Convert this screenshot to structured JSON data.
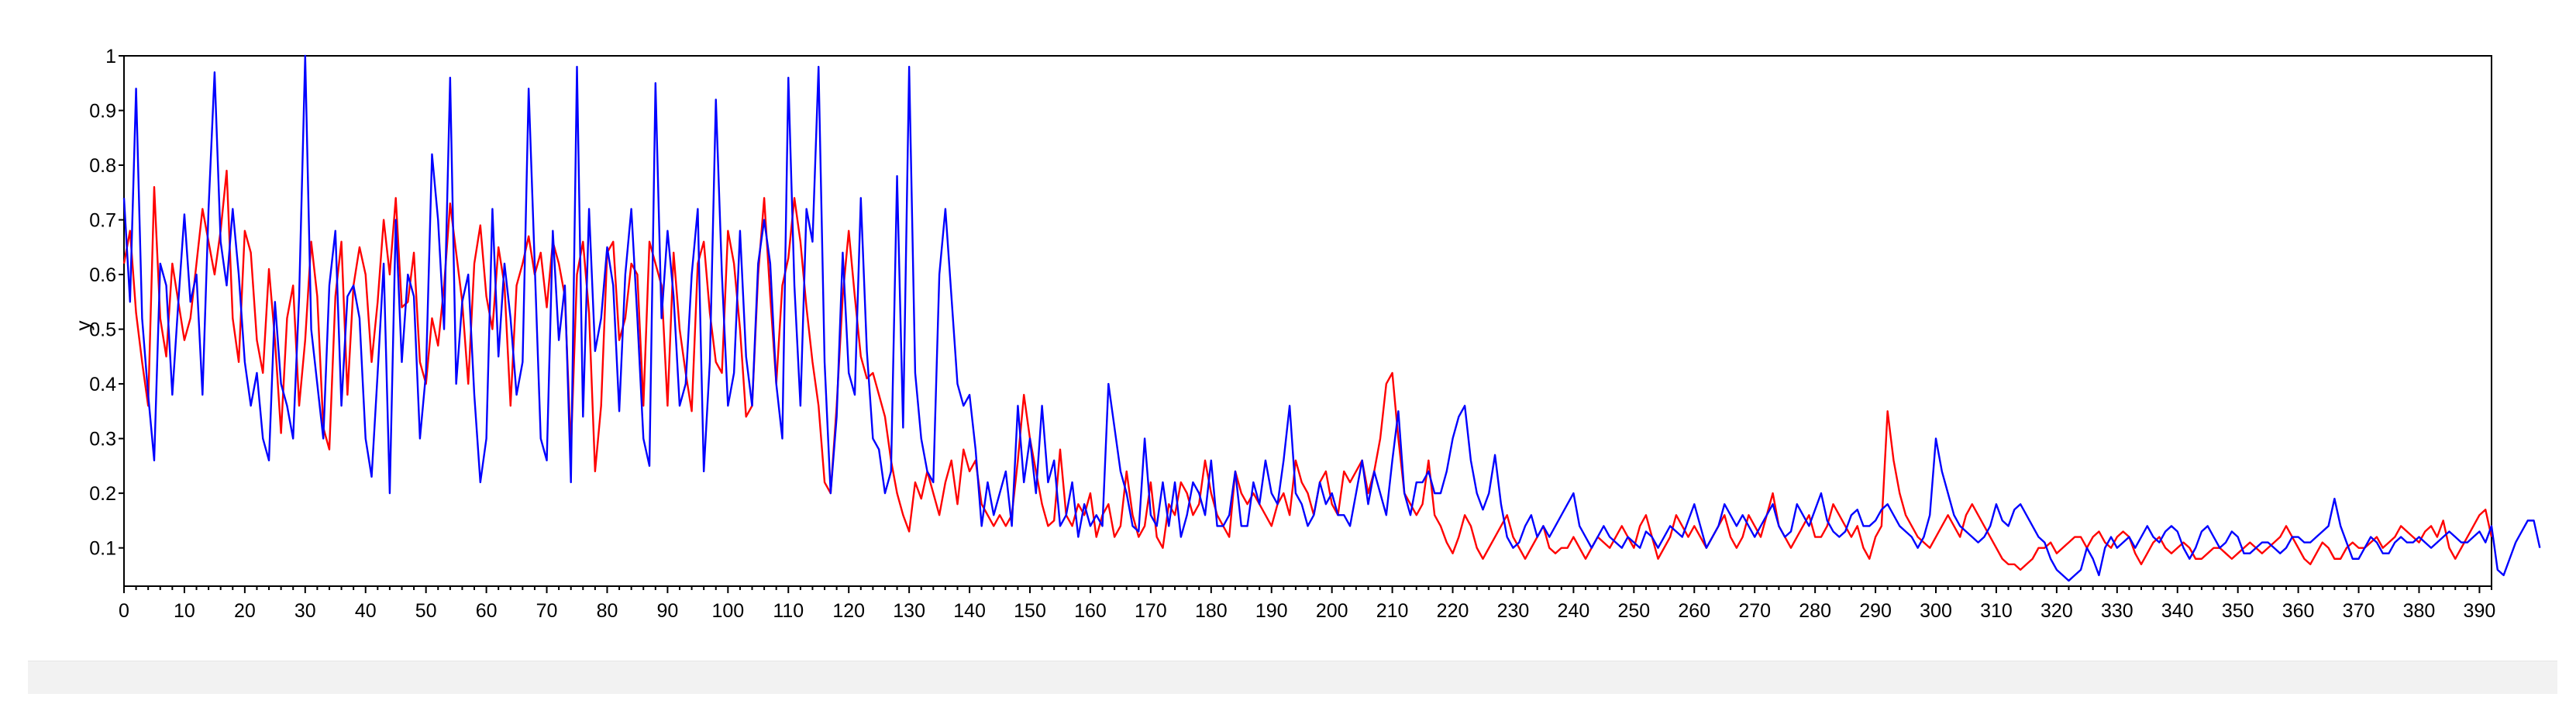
{
  "chart_data": {
    "type": "line",
    "ylabel": "y",
    "xlim": [
      0,
      392
    ],
    "ylim": [
      0.03,
      1.0
    ],
    "x_ticks": [
      "0",
      "10",
      "20",
      "30",
      "40",
      "50",
      "60",
      "70",
      "80",
      "90",
      "100",
      "110",
      "120",
      "130",
      "140",
      "150",
      "160",
      "170",
      "180",
      "190",
      "200",
      "210",
      "220",
      "230",
      "240",
      "250",
      "260",
      "270",
      "280",
      "290",
      "300",
      "310",
      "320",
      "330",
      "340",
      "350",
      "360",
      "370",
      "380",
      "390"
    ],
    "y_ticks": [
      "0.1",
      "0.2",
      "0.3",
      "0.4",
      "0.5",
      "0.6",
      "0.7",
      "0.8",
      "0.9",
      "1"
    ],
    "series": [
      {
        "color": "#ff0000",
        "values": [
          0.62,
          0.68,
          0.53,
          0.44,
          0.36,
          0.76,
          0.52,
          0.45,
          0.62,
          0.55,
          0.48,
          0.52,
          0.62,
          0.72,
          0.66,
          0.6,
          0.68,
          0.79,
          0.52,
          0.44,
          0.68,
          0.64,
          0.48,
          0.42,
          0.61,
          0.48,
          0.31,
          0.52,
          0.58,
          0.36,
          0.48,
          0.66,
          0.56,
          0.32,
          0.28,
          0.56,
          0.66,
          0.38,
          0.58,
          0.65,
          0.6,
          0.44,
          0.55,
          0.7,
          0.6,
          0.74,
          0.54,
          0.55,
          0.64,
          0.44,
          0.4,
          0.52,
          0.47,
          0.58,
          0.73,
          0.64,
          0.55,
          0.4,
          0.62,
          0.69,
          0.56,
          0.5,
          0.65,
          0.58,
          0.36,
          0.58,
          0.62,
          0.67,
          0.6,
          0.64,
          0.54,
          0.66,
          0.62,
          0.56,
          0.28,
          0.6,
          0.66,
          0.53,
          0.24,
          0.36,
          0.64,
          0.66,
          0.48,
          0.52,
          0.62,
          0.6,
          0.36,
          0.66,
          0.62,
          0.58,
          0.36,
          0.64,
          0.5,
          0.42,
          0.35,
          0.62,
          0.66,
          0.53,
          0.44,
          0.42,
          0.68,
          0.62,
          0.5,
          0.34,
          0.36,
          0.6,
          0.74,
          0.56,
          0.4,
          0.58,
          0.63,
          0.74,
          0.66,
          0.54,
          0.44,
          0.36,
          0.22,
          0.2,
          0.36,
          0.56,
          0.68,
          0.56,
          0.45,
          0.41,
          0.42,
          0.38,
          0.34,
          0.26,
          0.2,
          0.16,
          0.13,
          0.22,
          0.19,
          0.24,
          0.2,
          0.16,
          0.22,
          0.26,
          0.18,
          0.28,
          0.24,
          0.26,
          0.18,
          0.16,
          0.14,
          0.16,
          0.14,
          0.16,
          0.26,
          0.38,
          0.3,
          0.24,
          0.18,
          0.14,
          0.15,
          0.28,
          0.16,
          0.14,
          0.18,
          0.16,
          0.2,
          0.12,
          0.16,
          0.18,
          0.12,
          0.14,
          0.24,
          0.16,
          0.12,
          0.14,
          0.22,
          0.12,
          0.1,
          0.18,
          0.16,
          0.22,
          0.2,
          0.16,
          0.18,
          0.26,
          0.2,
          0.16,
          0.14,
          0.12,
          0.24,
          0.2,
          0.18,
          0.2,
          0.18,
          0.16,
          0.14,
          0.18,
          0.2,
          0.16,
          0.26,
          0.22,
          0.2,
          0.16,
          0.22,
          0.24,
          0.18,
          0.16,
          0.24,
          0.22,
          0.24,
          0.26,
          0.2,
          0.24,
          0.3,
          0.4,
          0.42,
          0.3,
          0.2,
          0.18,
          0.16,
          0.18,
          0.26,
          0.16,
          0.14,
          0.11,
          0.09,
          0.12,
          0.16,
          0.14,
          0.1,
          0.08,
          0.1,
          0.12,
          0.14,
          0.16,
          0.12,
          0.1,
          0.08,
          0.1,
          0.12,
          0.14,
          0.1,
          0.09,
          0.1,
          0.1,
          0.12,
          0.1,
          0.08,
          0.1,
          0.12,
          0.11,
          0.1,
          0.12,
          0.14,
          0.12,
          0.1,
          0.14,
          0.16,
          0.12,
          0.08,
          0.1,
          0.12,
          0.16,
          0.14,
          0.12,
          0.14,
          0.12,
          0.1,
          0.12,
          0.14,
          0.16,
          0.12,
          0.1,
          0.12,
          0.16,
          0.14,
          0.12,
          0.16,
          0.2,
          0.14,
          0.12,
          0.1,
          0.12,
          0.14,
          0.16,
          0.12,
          0.12,
          0.14,
          0.18,
          0.16,
          0.14,
          0.12,
          0.14,
          0.1,
          0.08,
          0.12,
          0.14,
          0.35,
          0.26,
          0.2,
          0.16,
          0.14,
          0.12,
          0.11,
          0.1,
          0.12,
          0.14,
          0.16,
          0.14,
          0.12,
          0.16,
          0.18,
          0.16,
          0.14,
          0.12,
          0.1,
          0.08,
          0.07,
          0.07,
          0.06,
          0.07,
          0.08,
          0.1,
          0.1,
          0.11,
          0.09,
          0.1,
          0.11,
          0.12,
          0.12,
          0.1,
          0.12,
          0.13,
          0.11,
          0.1,
          0.12,
          0.13,
          0.12,
          0.09,
          0.07,
          0.09,
          0.11,
          0.12,
          0.1,
          0.09,
          0.1,
          0.11,
          0.1,
          0.08,
          0.08,
          0.09,
          0.1,
          0.1,
          0.09,
          0.08,
          0.09,
          0.1,
          0.11,
          0.1,
          0.09,
          0.1,
          0.11,
          0.12,
          0.14,
          0.12,
          0.1,
          0.08,
          0.07,
          0.09,
          0.11,
          0.1,
          0.08,
          0.08,
          0.1,
          0.11,
          0.1,
          0.1,
          0.11,
          0.12,
          0.1,
          0.11,
          0.12,
          0.14,
          0.13,
          0.12,
          0.11,
          0.13,
          0.14,
          0.12,
          0.15,
          0.1,
          0.08,
          0.1,
          0.12,
          0.14,
          0.16,
          0.17,
          0.12
        ]
      },
      {
        "color": "#0000ff",
        "values": [
          0.74,
          0.55,
          0.94,
          0.52,
          0.38,
          0.26,
          0.62,
          0.58,
          0.38,
          0.55,
          0.71,
          0.55,
          0.6,
          0.38,
          0.72,
          0.97,
          0.66,
          0.58,
          0.72,
          0.6,
          0.44,
          0.36,
          0.42,
          0.3,
          0.26,
          0.55,
          0.4,
          0.36,
          0.3,
          0.56,
          1.0,
          0.5,
          0.4,
          0.3,
          0.58,
          0.68,
          0.36,
          0.56,
          0.58,
          0.52,
          0.3,
          0.23,
          0.42,
          0.62,
          0.2,
          0.7,
          0.44,
          0.6,
          0.56,
          0.3,
          0.42,
          0.82,
          0.7,
          0.5,
          0.96,
          0.4,
          0.55,
          0.6,
          0.38,
          0.22,
          0.3,
          0.72,
          0.45,
          0.62,
          0.52,
          0.38,
          0.44,
          0.94,
          0.62,
          0.3,
          0.26,
          0.68,
          0.48,
          0.58,
          0.22,
          0.98,
          0.34,
          0.72,
          0.46,
          0.52,
          0.65,
          0.58,
          0.35,
          0.6,
          0.72,
          0.52,
          0.3,
          0.25,
          0.95,
          0.52,
          0.68,
          0.56,
          0.36,
          0.4,
          0.6,
          0.72,
          0.24,
          0.44,
          0.92,
          0.6,
          0.36,
          0.42,
          0.68,
          0.45,
          0.36,
          0.62,
          0.7,
          0.62,
          0.4,
          0.3,
          0.96,
          0.58,
          0.36,
          0.72,
          0.66,
          0.98,
          0.44,
          0.2,
          0.34,
          0.64,
          0.42,
          0.38,
          0.74,
          0.46,
          0.3,
          0.28,
          0.2,
          0.24,
          0.78,
          0.32,
          0.98,
          0.42,
          0.3,
          0.24,
          0.22,
          0.6,
          0.72,
          0.56,
          0.4,
          0.36,
          0.38,
          0.28,
          0.14,
          0.22,
          0.16,
          0.2,
          0.24,
          0.14,
          0.36,
          0.22,
          0.3,
          0.2,
          0.36,
          0.22,
          0.26,
          0.14,
          0.16,
          0.22,
          0.12,
          0.18,
          0.14,
          0.16,
          0.14,
          0.4,
          0.32,
          0.24,
          0.2,
          0.14,
          0.13,
          0.3,
          0.16,
          0.14,
          0.22,
          0.14,
          0.22,
          0.12,
          0.16,
          0.22,
          0.2,
          0.16,
          0.26,
          0.14,
          0.14,
          0.16,
          0.24,
          0.14,
          0.14,
          0.22,
          0.18,
          0.26,
          0.2,
          0.18,
          0.26,
          0.36,
          0.2,
          0.18,
          0.14,
          0.16,
          0.22,
          0.18,
          0.2,
          0.16,
          0.16,
          0.14,
          0.2,
          0.26,
          0.18,
          0.24,
          0.2,
          0.16,
          0.26,
          0.35,
          0.2,
          0.16,
          0.22,
          0.22,
          0.24,
          0.2,
          0.2,
          0.24,
          0.3,
          0.34,
          0.36,
          0.26,
          0.2,
          0.17,
          0.2,
          0.27,
          0.18,
          0.12,
          0.1,
          0.11,
          0.14,
          0.16,
          0.12,
          0.14,
          0.12,
          0.14,
          0.16,
          0.18,
          0.2,
          0.14,
          0.12,
          0.1,
          0.12,
          0.14,
          0.12,
          0.11,
          0.1,
          0.12,
          0.11,
          0.1,
          0.13,
          0.12,
          0.1,
          0.12,
          0.14,
          0.13,
          0.12,
          0.15,
          0.18,
          0.14,
          0.1,
          0.12,
          0.14,
          0.18,
          0.16,
          0.14,
          0.16,
          0.14,
          0.12,
          0.14,
          0.16,
          0.18,
          0.14,
          0.12,
          0.13,
          0.18,
          0.16,
          0.14,
          0.17,
          0.2,
          0.15,
          0.13,
          0.12,
          0.13,
          0.16,
          0.17,
          0.14,
          0.14,
          0.15,
          0.17,
          0.18,
          0.16,
          0.14,
          0.13,
          0.12,
          0.1,
          0.12,
          0.16,
          0.3,
          0.24,
          0.2,
          0.16,
          0.14,
          0.13,
          0.12,
          0.11,
          0.12,
          0.14,
          0.18,
          0.15,
          0.14,
          0.17,
          0.18,
          0.16,
          0.14,
          0.12,
          0.11,
          0.08,
          0.06,
          0.05,
          0.04,
          0.05,
          0.06,
          0.1,
          0.08,
          0.05,
          0.1,
          0.12,
          0.1,
          0.11,
          0.12,
          0.1,
          0.12,
          0.14,
          0.12,
          0.11,
          0.13,
          0.14,
          0.13,
          0.1,
          0.08,
          0.1,
          0.13,
          0.14,
          0.12,
          0.1,
          0.11,
          0.13,
          0.12,
          0.09,
          0.09,
          0.1,
          0.11,
          0.11,
          0.1,
          0.09,
          0.1,
          0.12,
          0.12,
          0.11,
          0.11,
          0.12,
          0.13,
          0.14,
          0.19,
          0.14,
          0.11,
          0.08,
          0.08,
          0.1,
          0.12,
          0.11,
          0.09,
          0.09,
          0.11,
          0.12,
          0.11,
          0.11,
          0.12,
          0.11,
          0.1,
          0.11,
          0.12,
          0.13,
          0.12,
          0.11,
          0.11,
          0.12,
          0.13,
          0.11,
          0.14,
          0.06,
          0.05,
          0.08,
          0.11,
          0.13,
          0.15,
          0.15,
          0.1
        ]
      }
    ]
  }
}
